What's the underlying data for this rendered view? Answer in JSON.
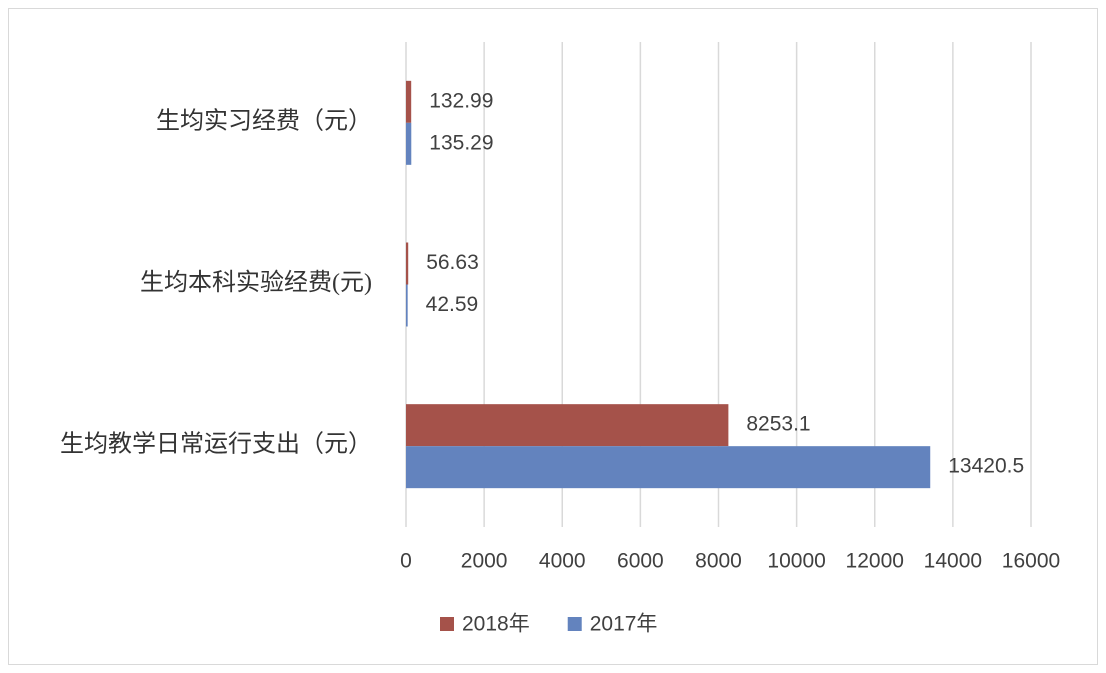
{
  "chart_data": {
    "type": "hbar",
    "categories": [
      "生均实习经费（元）",
      "生均本科实验经费(元)",
      "生均教学日常运行支出（元）"
    ],
    "series": [
      {
        "name": "2018年",
        "color": "#a5524a",
        "values": [
          132.99,
          56.63,
          8253.1
        ]
      },
      {
        "name": "2017年",
        "color": "#6383be",
        "values": [
          135.29,
          42.59,
          13420.5
        ]
      }
    ],
    "xlim": [
      0,
      16000
    ],
    "xticks": [
      0,
      2000,
      4000,
      6000,
      8000,
      10000,
      12000,
      14000,
      16000
    ],
    "grid": true,
    "legend": "bottom"
  }
}
